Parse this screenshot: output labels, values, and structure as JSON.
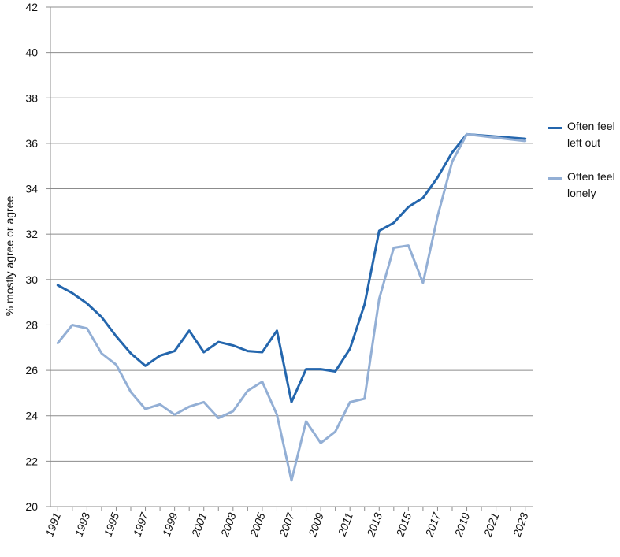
{
  "chart_data": {
    "type": "line",
    "ylabel": "% mostly agree or agree",
    "xlabel": "",
    "ylim": [
      20,
      42
    ],
    "yticks": [
      "20",
      "22",
      "24",
      "26",
      "28",
      "30",
      "32",
      "34",
      "36",
      "38",
      "40",
      "42"
    ],
    "xlim": [
      1991,
      2023
    ],
    "xtick_labels": [
      "1991",
      "1993",
      "1995",
      "1997",
      "1999",
      "2001",
      "2003",
      "2005",
      "2007",
      "2009",
      "2011",
      "2013",
      "2015",
      "2017",
      "2019",
      "2021",
      "2023"
    ],
    "grid": "horizontal",
    "legend_position": "right",
    "series": [
      {
        "name": "Often feel left out",
        "color": "#2466ad",
        "points": [
          [
            1991,
            29.75
          ],
          [
            1992,
            29.4
          ],
          [
            1993,
            28.95
          ],
          [
            1994,
            28.35
          ],
          [
            1995,
            27.5
          ],
          [
            1996,
            26.75
          ],
          [
            1997,
            26.2
          ],
          [
            1998,
            26.65
          ],
          [
            1999,
            26.85
          ],
          [
            2000,
            27.75
          ],
          [
            2001,
            26.8
          ],
          [
            2002,
            27.25
          ],
          [
            2003,
            27.1
          ],
          [
            2004,
            26.85
          ],
          [
            2005,
            26.8
          ],
          [
            2006,
            27.75
          ],
          [
            2007,
            24.6
          ],
          [
            2008,
            26.05
          ],
          [
            2009,
            26.05
          ],
          [
            2010,
            25.95
          ],
          [
            2011,
            26.95
          ],
          [
            2012,
            28.9
          ],
          [
            2013,
            32.15
          ],
          [
            2014,
            32.5
          ],
          [
            2015,
            33.2
          ],
          [
            2016,
            33.6
          ],
          [
            2017,
            34.5
          ],
          [
            2018,
            35.6
          ],
          [
            2019,
            36.4
          ],
          [
            2023,
            36.2
          ]
        ]
      },
      {
        "name": "Often feel lonely",
        "color": "#93afd5",
        "points": [
          [
            1991,
            27.2
          ],
          [
            1992,
            28.0
          ],
          [
            1993,
            27.85
          ],
          [
            1994,
            26.75
          ],
          [
            1995,
            26.25
          ],
          [
            1996,
            25.05
          ],
          [
            1997,
            24.3
          ],
          [
            1998,
            24.5
          ],
          [
            1999,
            24.05
          ],
          [
            2000,
            24.4
          ],
          [
            2001,
            24.6
          ],
          [
            2002,
            23.9
          ],
          [
            2003,
            24.2
          ],
          [
            2004,
            25.1
          ],
          [
            2005,
            25.5
          ],
          [
            2006,
            24.05
          ],
          [
            2007,
            21.15
          ],
          [
            2008,
            23.75
          ],
          [
            2009,
            22.8
          ],
          [
            2010,
            23.3
          ],
          [
            2011,
            24.6
          ],
          [
            2012,
            24.75
          ],
          [
            2013,
            29.15
          ],
          [
            2014,
            31.4
          ],
          [
            2015,
            31.5
          ],
          [
            2016,
            29.85
          ],
          [
            2017,
            32.8
          ],
          [
            2018,
            35.2
          ],
          [
            2019,
            36.4
          ],
          [
            2023,
            36.1
          ]
        ]
      }
    ]
  }
}
